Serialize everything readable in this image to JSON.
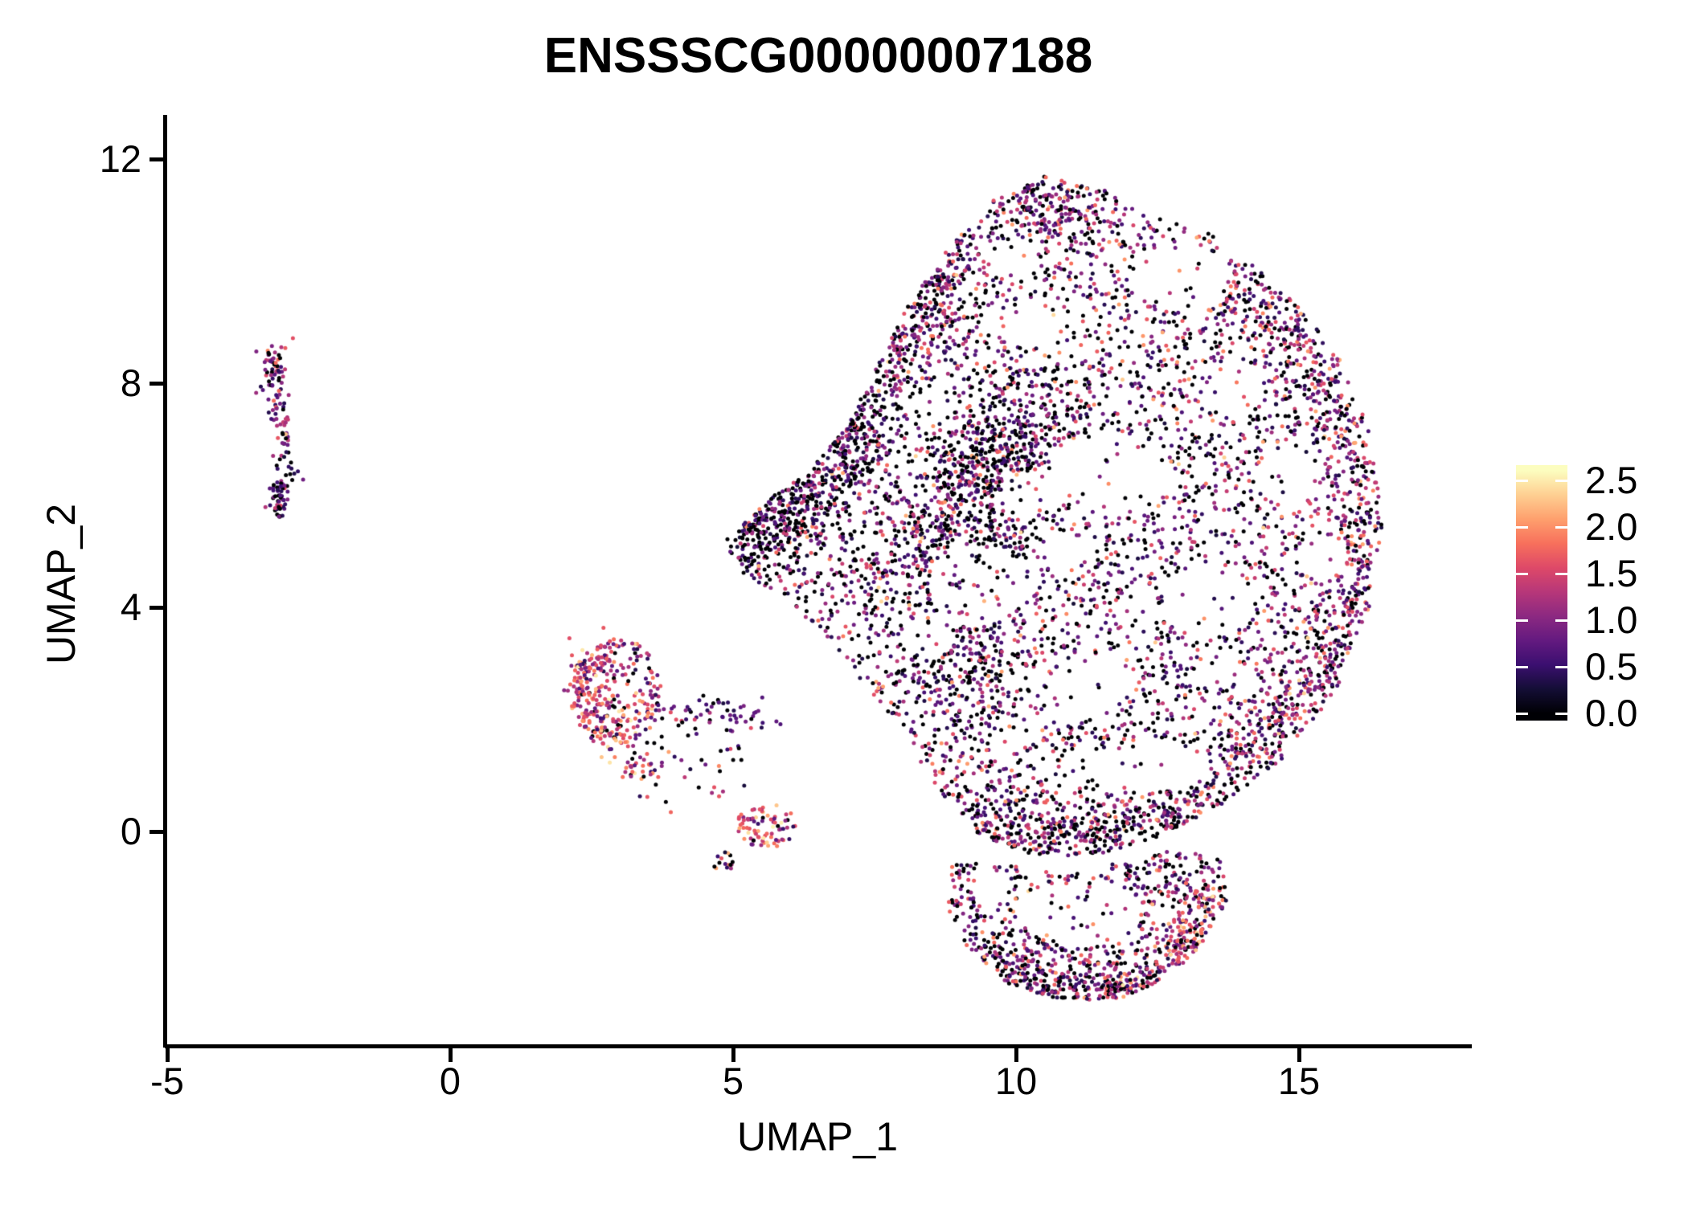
{
  "title": "ENSSSCG00000007188",
  "chart_data": {
    "type": "scatter",
    "title": "ENSSSCG00000007188",
    "xlabel": "UMAP_1",
    "ylabel": "UMAP_2",
    "xlim": [
      -5.05,
      18.0
    ],
    "ylim": [
      -3.85,
      12.8
    ],
    "x_ticks": [
      -5,
      0,
      5,
      10,
      15
    ],
    "y_ticks": [
      0,
      4,
      8,
      12
    ],
    "x_tick_labels": [
      "-5",
      "0",
      "5",
      "10",
      "15"
    ],
    "y_tick_labels": [
      "0",
      "4",
      "8",
      "12"
    ],
    "grid": false,
    "legend_position": "right",
    "legend": {
      "tick_labels": [
        "2.5",
        "2.0",
        "1.5",
        "1.0",
        "0.5",
        "0.0"
      ],
      "min": 0.0,
      "max": 2.5,
      "bar_value_bottom": -0.08,
      "bar_value_top": 2.66
    },
    "colormap": {
      "name": "magma",
      "stops": [
        "#000004",
        "#140e36",
        "#3b0f70",
        "#641a80",
        "#8c2981",
        "#b73779",
        "#de4968",
        "#f7705c",
        "#fe9f6d",
        "#fecf92",
        "#fcfdbf"
      ],
      "value_max": 2.6
    },
    "seed": 1337,
    "point_radius_px": 2.5,
    "expression_profiles": {
      "dark": [
        [
          0,
          0,
          0.45
        ],
        [
          0.25,
          0.3,
          0.2
        ],
        [
          0.55,
          0.35,
          0.15
        ],
        [
          0.9,
          0.4,
          0.12
        ],
        [
          1.4,
          0.4,
          0.06
        ],
        [
          1.9,
          0.4,
          0.02
        ]
      ],
      "darkband": [
        [
          0,
          0,
          0.48
        ],
        [
          0.25,
          0.35,
          0.22
        ],
        [
          0.6,
          0.4,
          0.16
        ],
        [
          1.0,
          0.4,
          0.09
        ],
        [
          1.4,
          0.4,
          0.04
        ],
        [
          1.9,
          0.3,
          0.01
        ]
      ],
      "mixed": [
        [
          0,
          0,
          0.33
        ],
        [
          0.25,
          0.35,
          0.16
        ],
        [
          0.6,
          0.4,
          0.18
        ],
        [
          1.0,
          0.4,
          0.16
        ],
        [
          1.4,
          0.35,
          0.11
        ],
        [
          1.75,
          0.35,
          0.05
        ],
        [
          2.1,
          0.3,
          0.01
        ]
      ],
      "rightmix": [
        [
          0,
          0,
          0.18
        ],
        [
          0.3,
          0.35,
          0.16
        ],
        [
          0.65,
          0.4,
          0.24
        ],
        [
          1.05,
          0.4,
          0.22
        ],
        [
          1.45,
          0.35,
          0.13
        ],
        [
          1.8,
          0.35,
          0.06
        ],
        [
          2.15,
          0.25,
          0.01
        ]
      ],
      "warm": [
        [
          0,
          0,
          0.09
        ],
        [
          0.35,
          0.35,
          0.1
        ],
        [
          0.7,
          0.4,
          0.16
        ],
        [
          1.1,
          0.4,
          0.22
        ],
        [
          1.5,
          0.35,
          0.24
        ],
        [
          1.85,
          0.35,
          0.13
        ],
        [
          2.2,
          0.3,
          0.05
        ],
        [
          2.45,
          0.15,
          0.01
        ]
      ],
      "lobemix": [
        [
          0,
          0,
          0.3
        ],
        [
          0.3,
          0.35,
          0.16
        ],
        [
          0.65,
          0.4,
          0.2
        ],
        [
          1.05,
          0.4,
          0.17
        ],
        [
          1.45,
          0.35,
          0.11
        ],
        [
          1.8,
          0.35,
          0.05
        ],
        [
          2.2,
          0.2,
          0.01
        ]
      ],
      "leftmix": [
        [
          0,
          0,
          0.18
        ],
        [
          0.35,
          0.35,
          0.2
        ],
        [
          0.7,
          0.35,
          0.3
        ],
        [
          1.1,
          0.35,
          0.17
        ],
        [
          1.5,
          0.35,
          0.1
        ],
        [
          1.9,
          0.4,
          0.04
        ],
        [
          2.35,
          0.15,
          0.01
        ]
      ],
      "leftdark": [
        [
          0,
          0,
          0.38
        ],
        [
          0.3,
          0.35,
          0.22
        ],
        [
          0.65,
          0.35,
          0.25
        ],
        [
          1.05,
          0.35,
          0.1
        ],
        [
          1.5,
          0.3,
          0.04
        ],
        [
          1.9,
          0.2,
          0.01
        ]
      ],
      "midtail": [
        [
          0,
          0,
          0.22
        ],
        [
          0.3,
          0.3,
          0.22
        ],
        [
          0.6,
          0.35,
          0.35
        ],
        [
          1.0,
          0.35,
          0.12
        ],
        [
          1.4,
          0.3,
          0.06
        ],
        [
          1.8,
          0.4,
          0.03
        ]
      ]
    },
    "clusters": [
      {
        "name": "main",
        "type": "polygon",
        "n": 3400,
        "profile": "mixed",
        "poly": [
          [
            10.5,
            11.7
          ],
          [
            11.6,
            11.5
          ],
          [
            12.1,
            11.1
          ],
          [
            13.4,
            10.7
          ],
          [
            14.7,
            9.7
          ],
          [
            15.7,
            8.5
          ],
          [
            16.3,
            7.0
          ],
          [
            16.5,
            5.4
          ],
          [
            16.2,
            3.8
          ],
          [
            15.6,
            2.4
          ],
          [
            14.7,
            1.3
          ],
          [
            13.7,
            0.5
          ],
          [
            12.5,
            -0.1
          ],
          [
            11.3,
            -0.45
          ],
          [
            10.2,
            -0.4
          ],
          [
            9.35,
            -0.05
          ],
          [
            8.75,
            0.6
          ],
          [
            8.2,
            1.4
          ],
          [
            7.5,
            2.4
          ],
          [
            6.8,
            3.3
          ],
          [
            6.0,
            4.1
          ],
          [
            5.2,
            4.6
          ],
          [
            4.75,
            5.1
          ],
          [
            5.6,
            5.9
          ],
          [
            6.4,
            6.5
          ],
          [
            7.0,
            7.2
          ],
          [
            7.45,
            8.1
          ],
          [
            8.1,
            9.4
          ],
          [
            8.8,
            10.4
          ],
          [
            9.6,
            11.3
          ]
        ],
        "voids": [
          [
            9.3,
            4.4,
            0.85,
            0.75
          ],
          [
            11.6,
            6.4,
            1.0,
            0.75
          ],
          [
            12.9,
            9.9,
            0.85,
            0.6
          ],
          [
            10.35,
            9.1,
            0.55,
            0.45
          ],
          [
            13.4,
            4.1,
            0.8,
            0.65
          ],
          [
            11.3,
            2.6,
            0.65,
            0.55
          ],
          [
            14.9,
            6.4,
            0.5,
            0.5
          ],
          [
            8.5,
            3.5,
            0.45,
            0.4
          ],
          [
            12.3,
            1.15,
            1.1,
            0.45
          ],
          [
            10.2,
            6.0,
            0.45,
            0.4
          ],
          [
            13.9,
            7.9,
            0.5,
            0.4
          ],
          [
            9.9,
            10.2,
            0.5,
            0.35
          ],
          [
            15.4,
            4.9,
            0.45,
            0.4
          ],
          [
            10.9,
            4.9,
            0.5,
            0.4
          ]
        ]
      },
      {
        "name": "band-left-diag",
        "type": "path",
        "n": 480,
        "profile": "darkband",
        "sigma": 0.45,
        "clip": "main",
        "pts": [
          [
            4.9,
            4.9
          ],
          [
            5.9,
            5.6
          ],
          [
            6.7,
            6.4
          ],
          [
            7.3,
            7.6
          ]
        ]
      },
      {
        "name": "band-upperleft",
        "type": "path",
        "n": 260,
        "profile": "mixed",
        "sigma": 0.45,
        "clip": "main",
        "pts": [
          [
            7.5,
            8.1
          ],
          [
            8.2,
            9.3
          ],
          [
            8.9,
            10.4
          ]
        ]
      },
      {
        "name": "band-vertical",
        "type": "path",
        "n": 560,
        "profile": "darkband",
        "sigma": 0.55,
        "clip": "main",
        "pts": [
          [
            8.8,
            2.2
          ],
          [
            9.1,
            3.6
          ],
          [
            9.2,
            5.0
          ],
          [
            9.4,
            6.4
          ],
          [
            9.6,
            7.6
          ]
        ]
      },
      {
        "name": "band-bottom",
        "type": "path",
        "n": 380,
        "profile": "mixed",
        "sigma": 0.4,
        "clip": "main",
        "pts": [
          [
            8.8,
            0.5
          ],
          [
            9.9,
            -0.1
          ],
          [
            11.2,
            -0.35
          ],
          [
            12.5,
            0.0
          ],
          [
            13.5,
            0.6
          ]
        ]
      },
      {
        "name": "arc-right",
        "type": "arc",
        "n": 620,
        "profile": "rightmix",
        "cx": 10.7,
        "cy": 5.5,
        "r": 5.35,
        "a0": -55,
        "a1": 55,
        "sigma": 0.38,
        "clip": "main"
      },
      {
        "name": "streak-center",
        "type": "path",
        "n": 300,
        "profile": "mixed",
        "sigma": 0.5,
        "clip": "main",
        "pts": [
          [
            7.8,
            4.3
          ],
          [
            8.6,
            5.6
          ],
          [
            9.8,
            6.9
          ],
          [
            11.0,
            7.8
          ]
        ]
      },
      {
        "name": "top-ridge",
        "type": "path",
        "n": 160,
        "profile": "mixed",
        "sigma": 0.4,
        "clip": "main",
        "pts": [
          [
            9.8,
            10.9
          ],
          [
            10.6,
            11.3
          ],
          [
            11.4,
            10.9
          ]
        ]
      },
      {
        "name": "lobe",
        "type": "polygon",
        "n": 620,
        "profile": "lobemix",
        "poly": [
          [
            8.85,
            -0.55
          ],
          [
            8.8,
            -1.4
          ],
          [
            9.2,
            -2.2
          ],
          [
            9.9,
            -2.75
          ],
          [
            10.8,
            -3.0
          ],
          [
            11.8,
            -3.0
          ],
          [
            12.7,
            -2.6
          ],
          [
            13.4,
            -1.9
          ],
          [
            13.75,
            -1.15
          ],
          [
            13.6,
            -0.5
          ],
          [
            12.8,
            -0.3
          ],
          [
            11.8,
            -0.55
          ],
          [
            10.8,
            -0.75
          ],
          [
            9.8,
            -0.6
          ]
        ],
        "voids": [
          [
            11.2,
            -1.45,
            1.05,
            0.6
          ],
          [
            9.6,
            -1.0,
            0.35,
            0.3
          ]
        ]
      },
      {
        "name": "lobe-arc",
        "type": "arc",
        "n": 150,
        "profile": "warm",
        "cx": 11.3,
        "cy": -1.3,
        "r": 1.9,
        "a0": -80,
        "a1": 10,
        "sigma": 0.22,
        "clip": "lobe"
      },
      {
        "name": "lobe-bottom",
        "type": "path",
        "n": 170,
        "profile": "mixed",
        "sigma": 0.25,
        "clip": "lobe",
        "pts": [
          [
            9.4,
            -2.3
          ],
          [
            10.2,
            -2.8
          ],
          [
            11.2,
            -2.95
          ],
          [
            12.3,
            -2.75
          ]
        ]
      },
      {
        "name": "mid-blob",
        "type": "blob",
        "n": 240,
        "profile": "warm",
        "cx": 2.95,
        "cy": 2.5,
        "rx": 0.8,
        "ry": 0.95,
        "voids": [
          [
            3.15,
            2.55,
            0.28,
            0.28
          ]
        ]
      },
      {
        "name": "mid-arc",
        "type": "path",
        "n": 130,
        "profile": "warm",
        "sigma": 0.18,
        "pts": [
          [
            2.5,
            3.3
          ],
          [
            2.35,
            2.6
          ],
          [
            2.6,
            1.9
          ],
          [
            3.1,
            1.35
          ],
          [
            3.5,
            1.0
          ]
        ]
      },
      {
        "name": "mid-tail",
        "type": "path",
        "n": 62,
        "profile": "midtail",
        "sigma": 0.15,
        "pts": [
          [
            3.7,
            2.2
          ],
          [
            4.4,
            2.05
          ],
          [
            5.1,
            2.1
          ],
          [
            5.8,
            1.95
          ]
        ]
      },
      {
        "name": "mid-scatter",
        "type": "blob",
        "n": 38,
        "profile": "mixed",
        "cx": 4.2,
        "cy": 1.1,
        "rx": 1.1,
        "ry": 0.8,
        "voids": []
      },
      {
        "name": "mid-clump2",
        "type": "blob",
        "n": 80,
        "profile": "warm",
        "cx": 5.6,
        "cy": 0.1,
        "rx": 0.55,
        "ry": 0.4,
        "voids": []
      },
      {
        "name": "mid-clump3",
        "type": "blob",
        "n": 15,
        "profile": "mixed",
        "cx": 4.85,
        "cy": -0.55,
        "rx": 0.2,
        "ry": 0.18,
        "voids": []
      },
      {
        "name": "left-strip-top",
        "type": "path",
        "n": 95,
        "profile": "leftmix",
        "sigma": 0.12,
        "pts": [
          [
            -3.0,
            8.75
          ],
          [
            -3.15,
            8.3
          ],
          [
            -3.1,
            7.8
          ],
          [
            -2.95,
            7.35
          ],
          [
            -3.05,
            6.95
          ]
        ]
      },
      {
        "name": "left-strip-gap",
        "type": "path",
        "n": 8,
        "profile": "dark",
        "sigma": 0.07,
        "pts": [
          [
            -2.9,
            6.8
          ],
          [
            -2.95,
            6.6
          ]
        ]
      },
      {
        "name": "left-strip-bottom",
        "type": "path",
        "n": 62,
        "profile": "leftdark",
        "sigma": 0.11,
        "pts": [
          [
            -2.85,
            6.45
          ],
          [
            -3.0,
            6.05
          ],
          [
            -3.05,
            5.65
          ]
        ]
      }
    ]
  }
}
